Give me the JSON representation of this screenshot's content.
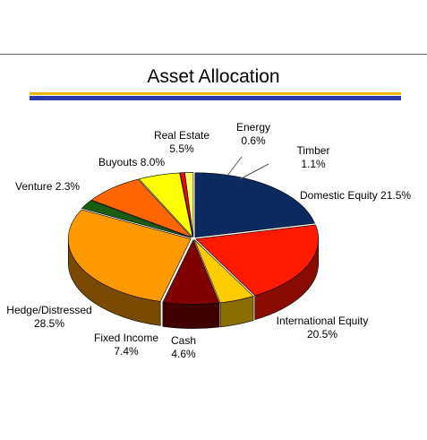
{
  "title": "Asset Allocation",
  "colors": {
    "rule_gold": "#f0b400",
    "rule_blue": "#2a3aa8",
    "leader": "#555555"
  },
  "chart_data": {
    "type": "pie",
    "title": "Asset Allocation",
    "style": "3d-exploded",
    "slices": [
      {
        "label": "Domestic Equity",
        "value": 21.5,
        "value_label": "21.5%",
        "color": "#0a2a60",
        "side": "#061838"
      },
      {
        "label": "International Equity",
        "value": 20.5,
        "value_label": "20.5%",
        "color": "#ff1a00",
        "side": "#8a0c00"
      },
      {
        "label": "Cash",
        "value": 4.6,
        "value_label": "4.6%",
        "color": "#ffcc00",
        "side": "#8a6e00"
      },
      {
        "label": "Fixed Income",
        "value": 7.4,
        "value_label": "7.4%",
        "color": "#800000",
        "side": "#400000"
      },
      {
        "label": "Hedge/Distressed",
        "value": 28.5,
        "value_label": "28.5%",
        "color": "#ff9900",
        "side": "#7a4a00"
      },
      {
        "label": "Venture",
        "value": 2.3,
        "value_label": "2.3%",
        "color": "#1a5c10",
        "side": "#0c2e08"
      },
      {
        "label": "Buyouts",
        "value": 8.0,
        "value_label": "8.0%",
        "color": "#ff6600",
        "side": "#8a3800"
      },
      {
        "label": "Real Estate",
        "value": 5.5,
        "value_label": "5.5%",
        "color": "#ffff00",
        "side": "#8a8a00"
      },
      {
        "label": "Energy",
        "value": 0.6,
        "value_label": "0.6%",
        "color": "#ff0000",
        "side": "#800000"
      },
      {
        "label": "Timber",
        "value": 1.1,
        "value_label": "1.1%",
        "color": "#ffff66",
        "side": "#8a8a30"
      }
    ]
  }
}
